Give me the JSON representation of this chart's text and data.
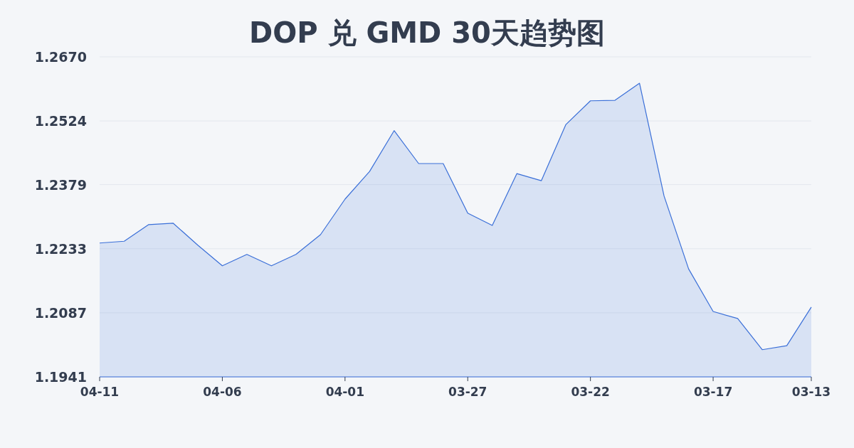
{
  "chart_data": {
    "type": "area",
    "title": "DOP 兑 GMD 30天趋势图",
    "categories": [
      "04-11",
      null,
      null,
      null,
      null,
      "04-06",
      null,
      null,
      null,
      null,
      "04-01",
      null,
      null,
      null,
      null,
      "03-27",
      null,
      null,
      null,
      null,
      "03-22",
      null,
      null,
      null,
      null,
      "03-17",
      null,
      null,
      null,
      "03-13"
    ],
    "values": [
      1.2246,
      1.225,
      1.2288,
      1.2291,
      1.2241,
      1.2194,
      1.222,
      1.2194,
      1.222,
      1.2265,
      1.2346,
      1.2409,
      1.2502,
      1.2427,
      1.2427,
      1.2314,
      1.2286,
      1.2404,
      1.2388,
      1.2516,
      1.257,
      1.2571,
      1.261,
      1.2353,
      1.2187,
      1.209,
      1.2074,
      1.2003,
      1.2012,
      1.21
    ],
    "color": "#3a6fd8",
    "ylim": [
      1.1941,
      1.267
    ],
    "yticks": [
      1.1941,
      1.2087,
      1.2233,
      1.2379,
      1.2524,
      {
        "value": 1.267,
        "label": "1.2670"
      }
    ],
    "grid": "y"
  }
}
